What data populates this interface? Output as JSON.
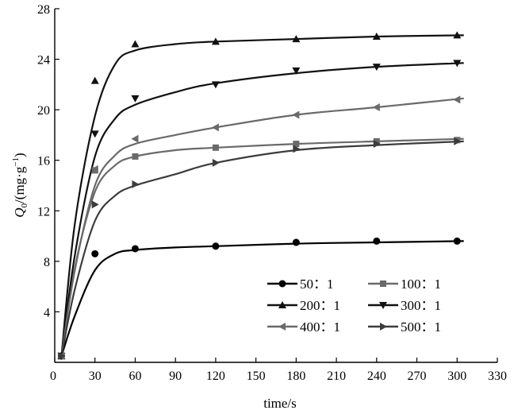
{
  "chart_data": {
    "type": "line",
    "xlabel": "time/s",
    "ylabel_main": "Q",
    "ylabel_sub": "0",
    "ylabel_rest": "/(mg·g",
    "ylabel_sup": "−1",
    "ylabel_close": ")",
    "xlim": [
      0,
      330
    ],
    "ylim": [
      0,
      28
    ],
    "xticks": [
      0,
      30,
      60,
      90,
      120,
      150,
      180,
      210,
      240,
      270,
      300,
      330
    ],
    "yticks": [
      4,
      8,
      12,
      16,
      20,
      24,
      28
    ],
    "grid": false,
    "legend_position": "bottom-right",
    "series": [
      {
        "name": "50：1",
        "color": "#000000",
        "marker": "circle",
        "x": [
          5,
          30,
          60,
          120,
          180,
          240,
          300
        ],
        "y": [
          0.5,
          8.6,
          9.0,
          9.2,
          9.5,
          9.6,
          9.6
        ],
        "fit": [
          [
            5,
            0.5
          ],
          [
            15,
            3.7
          ],
          [
            30,
            7.3
          ],
          [
            45,
            8.6
          ],
          [
            60,
            8.9
          ],
          [
            90,
            9.1
          ],
          [
            120,
            9.2
          ],
          [
            180,
            9.4
          ],
          [
            240,
            9.5
          ],
          [
            305,
            9.6
          ]
        ]
      },
      {
        "name": "100：1",
        "color": "#6a6a6a",
        "marker": "square",
        "x": [
          5,
          30,
          60,
          120,
          180,
          240,
          300
        ],
        "y": [
          0.5,
          15.2,
          16.3,
          17.0,
          17.3,
          17.5,
          17.6
        ],
        "fit": [
          [
            5,
            0.5
          ],
          [
            15,
            7.5
          ],
          [
            30,
            13.5
          ],
          [
            45,
            15.6
          ],
          [
            60,
            16.3
          ],
          [
            90,
            16.8
          ],
          [
            120,
            17.0
          ],
          [
            180,
            17.3
          ],
          [
            240,
            17.5
          ],
          [
            305,
            17.7
          ]
        ]
      },
      {
        "name": "200：1",
        "color": "#111111",
        "marker": "triangle-up",
        "x": [
          5,
          30,
          60,
          120,
          180,
          240,
          300
        ],
        "y": [
          0.5,
          22.3,
          25.2,
          25.4,
          25.6,
          25.8,
          25.9
        ],
        "fit": [
          [
            5,
            0.5
          ],
          [
            15,
            11.0
          ],
          [
            30,
            19.5
          ],
          [
            45,
            23.6
          ],
          [
            60,
            24.7
          ],
          [
            90,
            25.2
          ],
          [
            120,
            25.4
          ],
          [
            180,
            25.6
          ],
          [
            240,
            25.8
          ],
          [
            305,
            25.9
          ]
        ]
      },
      {
        "name": "300：1",
        "color": "#111111",
        "marker": "triangle-down",
        "x": [
          5,
          30,
          60,
          120,
          180,
          240,
          300
        ],
        "y": [
          0.5,
          18.1,
          20.9,
          22.0,
          23.1,
          23.4,
          23.7
        ],
        "fit": [
          [
            5,
            0.5
          ],
          [
            15,
            8.5
          ],
          [
            30,
            16.3
          ],
          [
            45,
            19.3
          ],
          [
            60,
            20.4
          ],
          [
            90,
            21.4
          ],
          [
            120,
            22.1
          ],
          [
            180,
            22.9
          ],
          [
            240,
            23.4
          ],
          [
            305,
            23.7
          ]
        ]
      },
      {
        "name": "400：1",
        "color": "#6a6a6a",
        "marker": "triangle-left",
        "x": [
          5,
          30,
          60,
          120,
          180,
          240,
          300
        ],
        "y": [
          0.5,
          15.3,
          17.7,
          18.6,
          19.6,
          20.2,
          20.8
        ],
        "fit": [
          [
            5,
            0.5
          ],
          [
            15,
            7.3
          ],
          [
            30,
            14.0
          ],
          [
            45,
            16.4
          ],
          [
            60,
            17.3
          ],
          [
            90,
            18.0
          ],
          [
            120,
            18.6
          ],
          [
            180,
            19.6
          ],
          [
            240,
            20.2
          ],
          [
            305,
            20.9
          ]
        ]
      },
      {
        "name": "500：1",
        "color": "#3c3c3c",
        "marker": "triangle-right",
        "x": [
          5,
          30,
          60,
          120,
          180,
          240,
          300
        ],
        "y": [
          0.5,
          12.5,
          14.1,
          15.8,
          16.9,
          17.3,
          17.5
        ],
        "fit": [
          [
            5,
            0.5
          ],
          [
            15,
            5.8
          ],
          [
            30,
            11.2
          ],
          [
            45,
            13.2
          ],
          [
            60,
            14.0
          ],
          [
            90,
            14.9
          ],
          [
            120,
            15.8
          ],
          [
            180,
            16.8
          ],
          [
            240,
            17.2
          ],
          [
            305,
            17.5
          ]
        ]
      }
    ]
  }
}
